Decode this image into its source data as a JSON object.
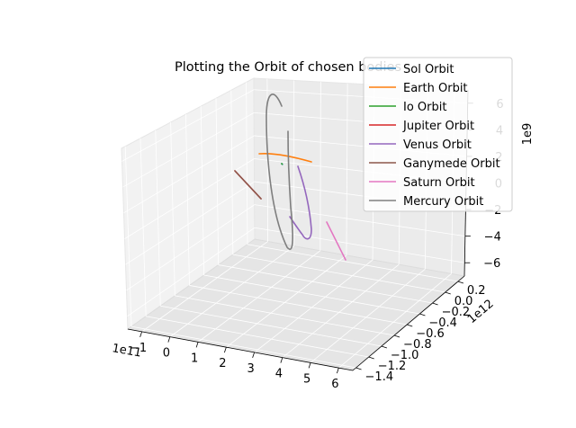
{
  "chart_data": {
    "type": "line",
    "projection": "3d",
    "title": "Plotting the Orbit of chosen bodies",
    "axes": {
      "x": {
        "range": [
          -1.5,
          6.5
        ],
        "ticks": [
          -1,
          0,
          1,
          2,
          3,
          4,
          5,
          6
        ],
        "tick_labels": [
          "−1",
          "0",
          "1",
          "2",
          "3",
          "4",
          "5",
          "6"
        ],
        "offset_label": "1e11"
      },
      "y": {
        "range": [
          -1.45,
          0.3
        ],
        "ticks": [
          0.2,
          0.0,
          -0.2,
          -0.4,
          -0.6,
          -0.8,
          -1.0,
          -1.2,
          -1.4
        ],
        "tick_labels": [
          "0.2",
          "0.0",
          "−0.2",
          "−0.4",
          "−0.6",
          "−0.8",
          "−1.0",
          "−1.2",
          "−1.4"
        ],
        "offset_label": "1e12"
      },
      "z": {
        "range": [
          -7,
          7
        ],
        "ticks": [
          6,
          4,
          2,
          0,
          -2,
          -4,
          -6
        ],
        "tick_labels": [
          "6",
          "4",
          "2",
          "0",
          "−2",
          "−4",
          "−6"
        ],
        "offset_label": "1e9"
      }
    },
    "grid": true,
    "legend": {
      "placement": "top-right"
    },
    "series": [
      {
        "name": "Sol Orbit",
        "color": "#1f77b4",
        "shape": "point",
        "x": [
          0.0
        ],
        "y": [
          0.0
        ],
        "z": [
          0.0
        ]
      },
      {
        "name": "Earth Orbit",
        "color": "#ff7f0e",
        "shape": "arc",
        "x": [
          1.0,
          0.6,
          0.0,
          -0.5,
          -1.0
        ],
        "y": [
          0.0,
          -0.1,
          -0.15,
          -0.1,
          0.05
        ],
        "z": [
          0,
          0,
          0,
          0,
          0
        ]
      },
      {
        "name": "Io Orbit",
        "color": "#2ca02c",
        "shape": "point",
        "x": [
          0.3
        ],
        "y": [
          0.1
        ],
        "z": [
          0.0
        ]
      },
      {
        "name": "Jupiter Orbit",
        "color": "#d62728",
        "shape": "line",
        "x": [
          -1.2,
          -1.0
        ],
        "y": [
          -0.2,
          -0.6
        ],
        "z": [
          0,
          0
        ]
      },
      {
        "name": "Venus Orbit",
        "color": "#9467bd",
        "shape": "arc",
        "x": [
          0.5,
          0.7,
          0.8,
          0.6,
          0.3
        ],
        "y": [
          -0.1,
          -0.3,
          -0.6,
          -0.8,
          -0.7
        ],
        "z": [
          1.5,
          0.5,
          -1.0,
          -3.0,
          -2.0
        ]
      },
      {
        "name": "Ganymede Orbit",
        "color": "#8c564b",
        "shape": "line",
        "x": [
          -1.2,
          -1.0
        ],
        "y": [
          -0.2,
          -0.6
        ],
        "z": [
          0,
          0
        ]
      },
      {
        "name": "Saturn Orbit",
        "color": "#e377c2",
        "shape": "line",
        "x": [
          4.5,
          5.5
        ],
        "y": [
          -1.0,
          -1.3
        ],
        "z": [
          0,
          0
        ]
      },
      {
        "name": "Mercury Orbit",
        "color": "#7f7f7f",
        "shape": "ellipse",
        "x": [
          0.0,
          0.5,
          0.0,
          -0.4
        ],
        "y": [
          0.0,
          -0.5,
          -0.9,
          -0.4
        ],
        "z": [
          6.0,
          0.0,
          -6.0,
          0.0
        ]
      }
    ]
  }
}
